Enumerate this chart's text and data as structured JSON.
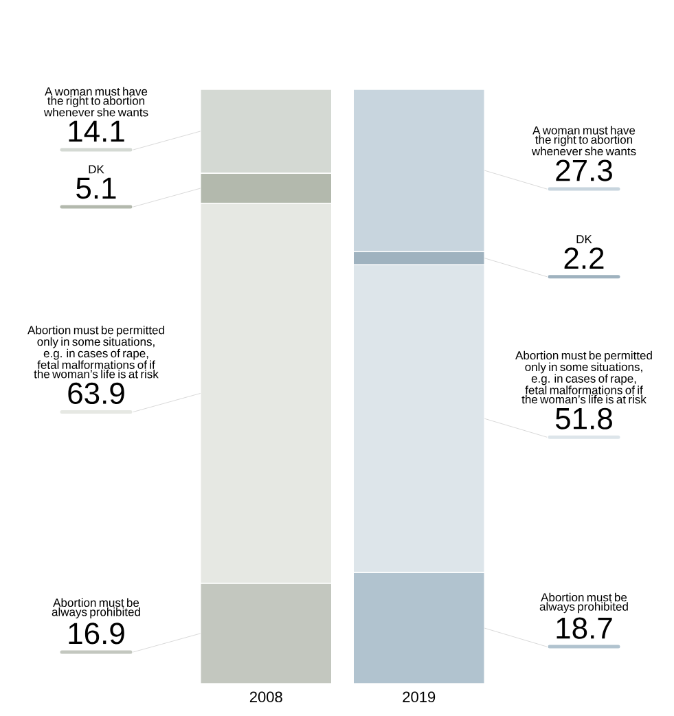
{
  "chart_data": {
    "type": "bar",
    "stacked": true,
    "data_labels": true,
    "categories": [
      "2008",
      "2019"
    ],
    "series": [
      {
        "name": "Abortion must be always prohibited",
        "colors": [
          "#c3c7bf",
          "#b1c3cf"
        ],
        "values": [
          16.9,
          18.7
        ]
      },
      {
        "name": "Abortion must be permitted only in some situations, e.g. in cases of rape, fetal malformations of if the woman’s life is at risk",
        "colors": [
          "#e6e8e3",
          "#dde5ea"
        ],
        "values": [
          63.9,
          51.8
        ]
      },
      {
        "name": "DK",
        "colors": [
          "#b3b9ad",
          "#9fb2bf"
        ],
        "values": [
          5.1,
          2.2
        ]
      },
      {
        "name": "A woman must have the right to abortion whenever she wants",
        "colors": [
          "#d4d9d3",
          "#c8d5de"
        ],
        "values": [
          14.1,
          27.3
        ]
      }
    ]
  }
}
